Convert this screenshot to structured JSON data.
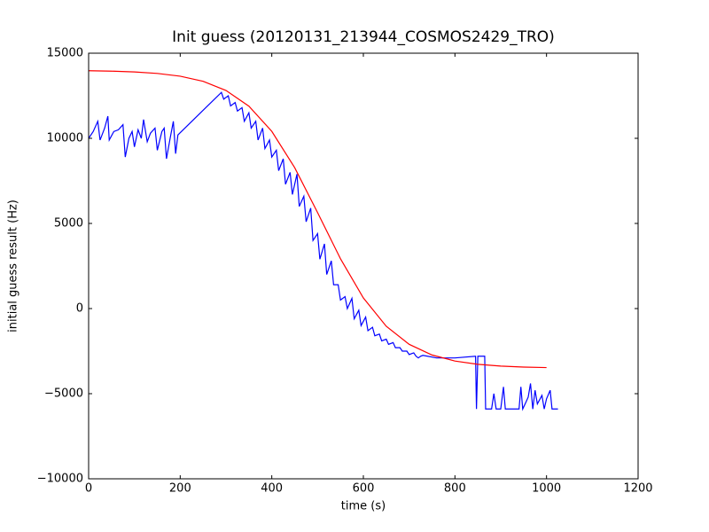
{
  "chart_data": {
    "type": "line",
    "title": "Init guess (20120131_213944_COSMOS2429_TRO)",
    "x_label": "time (s)",
    "y_label": "initial guess result (Hz)",
    "xlim": [
      0,
      1200
    ],
    "xticks": [
      0,
      200,
      400,
      600,
      800,
      1000,
      1200
    ],
    "ylim": [
      -10000,
      15000
    ],
    "yticks": [
      {
        "value": -10000,
        "label": "−10000"
      },
      {
        "value": -5000,
        "label": "−5000"
      },
      0,
      5000,
      10000,
      15000
    ],
    "series": [
      {
        "color": "#0000ff",
        "x": [
          0,
          10,
          20,
          25,
          35,
          42,
          45,
          55,
          65,
          75,
          80,
          88,
          95,
          100,
          108,
          115,
          120,
          128,
          135,
          145,
          150,
          160,
          165,
          170,
          178,
          185,
          190,
          195,
          290,
          295,
          305,
          310,
          320,
          325,
          335,
          340,
          350,
          355,
          365,
          370,
          380,
          385,
          395,
          400,
          410,
          415,
          425,
          430,
          440,
          445,
          455,
          460,
          470,
          475,
          485,
          490,
          500,
          505,
          515,
          520,
          530,
          535,
          545,
          550,
          560,
          565,
          575,
          580,
          590,
          595,
          605,
          610,
          620,
          625,
          635,
          640,
          650,
          655,
          665,
          670,
          680,
          685,
          695,
          700,
          710,
          715,
          720,
          725,
          730,
          760,
          800,
          845,
          847,
          850,
          865,
          867,
          880,
          885,
          890,
          900,
          906,
          910,
          940,
          944,
          948,
          955,
          960,
          965,
          970,
          975,
          980,
          990,
          995,
          1000,
          1008,
          1012,
          1025
        ],
        "values": [
          10000,
          10400,
          11000,
          9900,
          10600,
          11300,
          9900,
          10400,
          10500,
          10800,
          8900,
          10000,
          10400,
          9500,
          10500,
          10000,
          11100,
          9800,
          10300,
          10600,
          9300,
          10400,
          10600,
          8800,
          10000,
          11000,
          9100,
          10200,
          12700,
          12300,
          12500,
          11900,
          12100,
          11600,
          11800,
          11000,
          11500,
          10600,
          11000,
          9900,
          10600,
          9400,
          9900,
          8900,
          9300,
          8100,
          8800,
          7300,
          8000,
          6700,
          7900,
          6000,
          6600,
          5100,
          5900,
          4000,
          4400,
          2900,
          3800,
          2000,
          2800,
          1400,
          1400,
          500,
          700,
          0,
          600,
          -600,
          -100,
          -1000,
          -500,
          -1300,
          -1100,
          -1600,
          -1500,
          -1900,
          -1800,
          -2100,
          -2000,
          -2300,
          -2300,
          -2500,
          -2500,
          -2700,
          -2600,
          -2800,
          -2900,
          -2800,
          -2750,
          -2900,
          -2900,
          -2800,
          -5900,
          -2800,
          -2800,
          -5900,
          -5900,
          -5000,
          -5900,
          -5900,
          -4600,
          -5900,
          -5900,
          -4600,
          -5900,
          -5500,
          -5200,
          -4400,
          -5900,
          -4800,
          -5600,
          -5100,
          -5900,
          -5300,
          -4800,
          -5900,
          -5900
        ]
      },
      {
        "color": "#ff0000",
        "x": [
          0,
          50,
          100,
          150,
          200,
          250,
          300,
          350,
          400,
          450,
          500,
          550,
          600,
          650,
          700,
          750,
          800,
          850,
          900,
          950,
          1000
        ],
        "values": [
          13970,
          13946,
          13899,
          13811,
          13648,
          13349,
          12812,
          11890,
          10409,
          8278,
          5637,
          2927,
          622,
          -1039,
          -2101,
          -2728,
          -3081,
          -3275,
          -3380,
          -3436,
          -3466
        ]
      }
    ]
  }
}
